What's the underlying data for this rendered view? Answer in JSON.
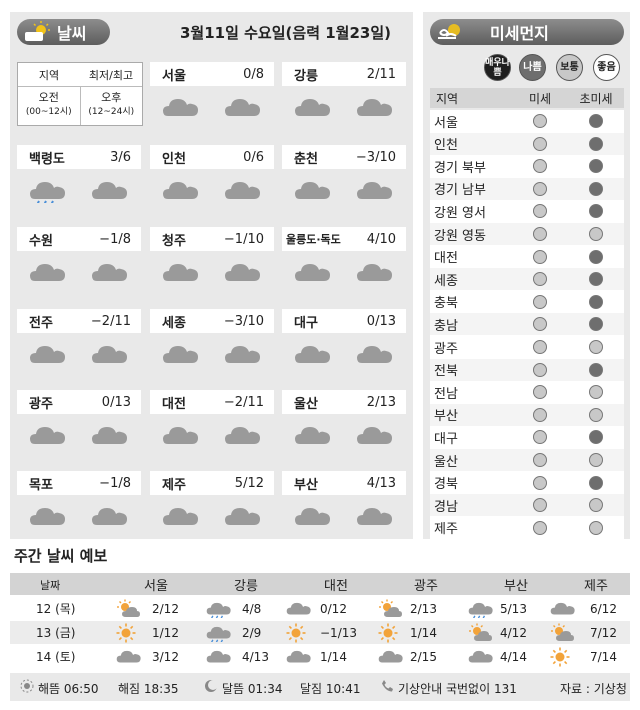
{
  "header": {
    "weather_title": "날씨",
    "date": "3월11일 수요일(음력 1월23일)",
    "pm_title": "미세먼지"
  },
  "legend": {
    "region": "지역",
    "minmax": "최저/최고",
    "am": "오전",
    "am_range": "(00~12시)",
    "pm": "오후",
    "pm_range": "(12~24시)"
  },
  "cities": [
    {
      "name": "서울",
      "temp": "0/8",
      "am": "cloud",
      "pm": "cloud"
    },
    {
      "name": "강릉",
      "temp": "2/11",
      "am": "cloud",
      "pm": "cloud"
    },
    {
      "name": "백령도",
      "temp": "3/6",
      "am": "rain-cloud",
      "pm": "cloud"
    },
    {
      "name": "인천",
      "temp": "0/6",
      "am": "cloud",
      "pm": "cloud"
    },
    {
      "name": "춘천",
      "temp": "−3/10",
      "am": "cloud",
      "pm": "cloud"
    },
    {
      "name": "수원",
      "temp": "−1/8",
      "am": "cloud",
      "pm": "cloud"
    },
    {
      "name": "청주",
      "temp": "−1/10",
      "am": "cloud",
      "pm": "cloud"
    },
    {
      "name": "울릉도·독도",
      "temp": "4/10",
      "am": "cloud",
      "pm": "cloud"
    },
    {
      "name": "전주",
      "temp": "−2/11",
      "am": "cloud",
      "pm": "cloud"
    },
    {
      "name": "세종",
      "temp": "−3/10",
      "am": "cloud",
      "pm": "cloud"
    },
    {
      "name": "대구",
      "temp": "0/13",
      "am": "cloud",
      "pm": "cloud"
    },
    {
      "name": "광주",
      "temp": "0/13",
      "am": "cloud",
      "pm": "cloud"
    },
    {
      "name": "대전",
      "temp": "−2/11",
      "am": "cloud",
      "pm": "cloud"
    },
    {
      "name": "울산",
      "temp": "2/13",
      "am": "cloud",
      "pm": "cloud"
    },
    {
      "name": "목포",
      "temp": "−1/8",
      "am": "cloud",
      "pm": "cloud"
    },
    {
      "name": "제주",
      "temp": "5/12",
      "am": "cloud",
      "pm": "cloud"
    },
    {
      "name": "부산",
      "temp": "4/13",
      "am": "cloud",
      "pm": "cloud"
    }
  ],
  "pm_legend": [
    "매우나쁨",
    "나쁨",
    "보통",
    "좋음"
  ],
  "pm_levels": {
    "매우나쁨": "#1f1f1f",
    "나쁨": "#6e6e6e",
    "보통": "#c8c8c8",
    "좋음": "#ffffff"
  },
  "pm_headers": {
    "region": "지역",
    "pm10": "미세",
    "pm25": "초미세"
  },
  "pm_rows": [
    {
      "region": "서울",
      "pm10": "보통",
      "pm25": "나쁨"
    },
    {
      "region": "인천",
      "pm10": "보통",
      "pm25": "나쁨"
    },
    {
      "region": "경기 북부",
      "pm10": "보통",
      "pm25": "나쁨"
    },
    {
      "region": "경기 남부",
      "pm10": "보통",
      "pm25": "나쁨"
    },
    {
      "region": "강원 영서",
      "pm10": "보통",
      "pm25": "나쁨"
    },
    {
      "region": "강원 영동",
      "pm10": "보통",
      "pm25": "보통"
    },
    {
      "region": "대전",
      "pm10": "보통",
      "pm25": "나쁨"
    },
    {
      "region": "세종",
      "pm10": "보통",
      "pm25": "나쁨"
    },
    {
      "region": "충북",
      "pm10": "보통",
      "pm25": "나쁨"
    },
    {
      "region": "충남",
      "pm10": "보통",
      "pm25": "나쁨"
    },
    {
      "region": "광주",
      "pm10": "보통",
      "pm25": "보통"
    },
    {
      "region": "전북",
      "pm10": "보통",
      "pm25": "나쁨"
    },
    {
      "region": "전남",
      "pm10": "보통",
      "pm25": "보통"
    },
    {
      "region": "부산",
      "pm10": "보통",
      "pm25": "보통"
    },
    {
      "region": "대구",
      "pm10": "보통",
      "pm25": "나쁨"
    },
    {
      "region": "울산",
      "pm10": "보통",
      "pm25": "보통"
    },
    {
      "region": "경북",
      "pm10": "보통",
      "pm25": "나쁨"
    },
    {
      "region": "경남",
      "pm10": "보통",
      "pm25": "보통"
    },
    {
      "region": "제주",
      "pm10": "보통",
      "pm25": "보통"
    }
  ],
  "weekly": {
    "title": "주간 날씨 예보",
    "date_header": "날짜",
    "cities": [
      "서울",
      "강릉",
      "대전",
      "광주",
      "부산",
      "제주"
    ],
    "rows": [
      {
        "date": "12 (목)",
        "cells": [
          {
            "icon": "sun-cloud",
            "temp": "2/12"
          },
          {
            "icon": "rain-cloud",
            "temp": "4/8"
          },
          {
            "icon": "cloud",
            "temp": "0/12"
          },
          {
            "icon": "sun-cloud",
            "temp": "2/13"
          },
          {
            "icon": "rain-cloud",
            "temp": "5/13"
          },
          {
            "icon": "cloud",
            "temp": "6/12"
          }
        ]
      },
      {
        "date": "13 (금)",
        "cells": [
          {
            "icon": "sun",
            "temp": "1/12"
          },
          {
            "icon": "rain-cloud",
            "temp": "2/9"
          },
          {
            "icon": "sun",
            "temp": "−1/13"
          },
          {
            "icon": "sun",
            "temp": "1/14"
          },
          {
            "icon": "sun-cloud",
            "temp": "4/12"
          },
          {
            "icon": "sun-cloud",
            "temp": "7/12"
          }
        ]
      },
      {
        "date": "14 (토)",
        "cells": [
          {
            "icon": "cloud",
            "temp": "3/12"
          },
          {
            "icon": "cloud",
            "temp": "4/13"
          },
          {
            "icon": "cloud",
            "temp": "1/14"
          },
          {
            "icon": "cloud",
            "temp": "2/15"
          },
          {
            "icon": "cloud",
            "temp": "4/14"
          },
          {
            "icon": "sun",
            "temp": "7/14"
          }
        ]
      }
    ]
  },
  "footer": {
    "sunrise": "해뜸 06:50",
    "sunset": "해짐 18:35",
    "moonrise": "달뜸 01:34",
    "moonset": "달짐 10:41",
    "phone": "기상안내 국번없이 131",
    "source": "자료 : 기상청"
  },
  "colors": {
    "panel": "#e9e9e9",
    "header_bar": "#d3d3d3",
    "cloud": "#9a9a9a",
    "sun": "#f2a33a"
  }
}
